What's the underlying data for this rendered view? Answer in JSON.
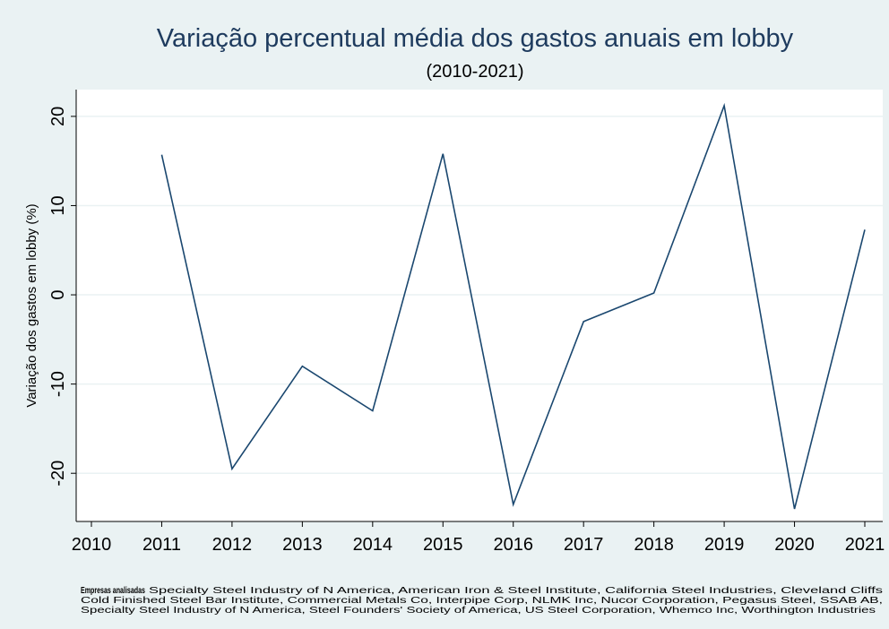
{
  "chart_data": {
    "type": "line",
    "title": "Variação percentual média dos gastos anuais em lobby",
    "subtitle": "(2010-2021)",
    "y_label": "Variação dos gastos em lobby (%)",
    "x": [
      2011,
      2012,
      2013,
      2014,
      2015,
      2016,
      2017,
      2018,
      2019,
      2020,
      2021
    ],
    "series": [
      {
        "name": null,
        "color": "#1a476f",
        "values": [
          15.7,
          -19.5,
          -8,
          -13,
          15.8,
          -23.5,
          -3,
          0.2,
          21.2,
          -24,
          7.3
        ]
      }
    ],
    "xlim": [
      2010,
      2021
    ],
    "xticks": [
      2010,
      2011,
      2012,
      2013,
      2014,
      2015,
      2016,
      2017,
      2018,
      2019,
      2020,
      2021
    ],
    "ylim": [
      -25,
      23
    ],
    "yticks": [
      -20,
      -10,
      0,
      10,
      20
    ],
    "grid": true,
    "note_label": "Empresas analisadas",
    "note_lines": [
      "Specialty Steel Industry of N America, American Iron & Steel Institute, California Steel Industries, Cleveland Cliffs",
      "Cold Finished Steel Bar Institute, Commercial Metals Co, Interpipe Corp,  NLMK Inc, Nucor Corporation, Pegasus Steel, SSAB AB,",
      "Specialty Steel Industry of N America, Steel Founders' Society of America, US Steel Corporation, Whemco Inc, Worthington Industries"
    ]
  }
}
